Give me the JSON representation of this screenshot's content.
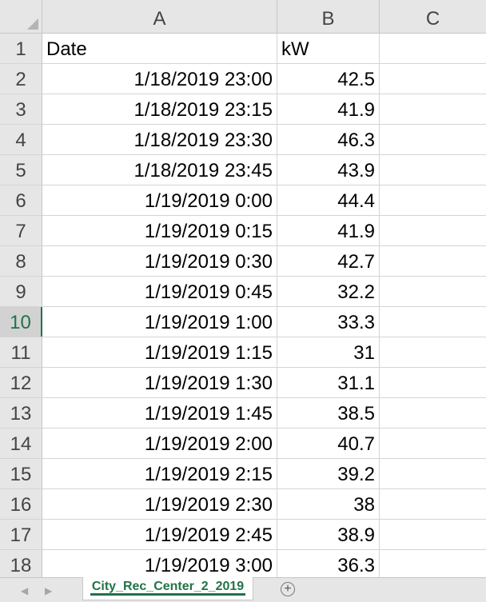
{
  "columns": [
    "A",
    "B",
    "C"
  ],
  "rows": [
    {
      "num": "1",
      "a": "Date",
      "b": "kW"
    },
    {
      "num": "2",
      "a": "1/18/2019 23:00",
      "b": "42.5"
    },
    {
      "num": "3",
      "a": "1/18/2019 23:15",
      "b": "41.9"
    },
    {
      "num": "4",
      "a": "1/18/2019 23:30",
      "b": "46.3"
    },
    {
      "num": "5",
      "a": "1/18/2019 23:45",
      "b": "43.9"
    },
    {
      "num": "6",
      "a": "1/19/2019 0:00",
      "b": "44.4"
    },
    {
      "num": "7",
      "a": "1/19/2019 0:15",
      "b": "41.9"
    },
    {
      "num": "8",
      "a": "1/19/2019 0:30",
      "b": "42.7"
    },
    {
      "num": "9",
      "a": "1/19/2019 0:45",
      "b": "32.2"
    },
    {
      "num": "10",
      "a": "1/19/2019 1:00",
      "b": "33.3"
    },
    {
      "num": "11",
      "a": "1/19/2019 1:15",
      "b": "31"
    },
    {
      "num": "12",
      "a": "1/19/2019 1:30",
      "b": "31.1"
    },
    {
      "num": "13",
      "a": "1/19/2019 1:45",
      "b": "38.5"
    },
    {
      "num": "14",
      "a": "1/19/2019 2:00",
      "b": "40.7"
    },
    {
      "num": "15",
      "a": "1/19/2019 2:15",
      "b": "39.2"
    },
    {
      "num": "16",
      "a": "1/19/2019 2:30",
      "b": "38"
    },
    {
      "num": "17",
      "a": "1/19/2019 2:45",
      "b": "38.9"
    },
    {
      "num": "18",
      "a": "1/19/2019 3:00",
      "b": "36.3"
    }
  ],
  "active_row": "10",
  "sheet_tab": {
    "label": "City_Rec_Center_2_2019"
  },
  "tabbar": {
    "prev_icon": "◀",
    "next_icon": "▶",
    "add_icon": "+"
  },
  "colors": {
    "accent": "#217346",
    "header_bg": "#e6e6e6",
    "grid": "#d4d4d4"
  }
}
